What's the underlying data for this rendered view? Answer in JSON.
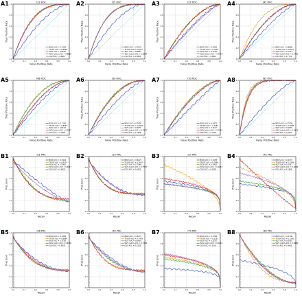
{
  "colors": {
    "BOW": "#1f3fbf",
    "TF-IDF": "#ff9800",
    "W2V": "#2ca02c",
    "W2V_batch": "#e31a1c",
    "D2V": "#9467bd",
    "baseline": "#17becf"
  },
  "chart_data": [
    {
      "panel": "A1",
      "type": "line",
      "kind": "roc",
      "title": "I21 ROC",
      "xlabel": "False Positive Rate",
      "ylabel": "True Positive Rate",
      "xlim": [
        0,
        1
      ],
      "ylim": [
        0,
        1
      ],
      "series": [
        {
          "name": "BOW AUC = 0.7595",
          "key": "BOW",
          "k": 1.65
        },
        {
          "name": "TF-IDF AUC = 0.8648",
          "key": "TF-IDF",
          "k": 3.0
        },
        {
          "name": "W2V AUC = 0.8610",
          "key": "W2V",
          "k": 2.95
        },
        {
          "name": "W2V_batch AUC = 0.8686",
          "key": "W2V_batch",
          "k": 3.1
        },
        {
          "name": "D2V AUC = 0.8613",
          "key": "D2V",
          "k": 2.95
        }
      ]
    },
    {
      "panel": "A2",
      "type": "line",
      "kind": "roc",
      "title": "I25 ROC",
      "xlabel": "False Positive Rate",
      "ylabel": "True Positive Rate",
      "xlim": [
        0,
        1
      ],
      "ylim": [
        0,
        1
      ],
      "series": [
        {
          "name": "BOW AUC = 0.7837",
          "key": "BOW",
          "k": 1.8
        },
        {
          "name": "TF-IDF AUC = 0.8927",
          "key": "TF-IDF",
          "k": 3.5
        },
        {
          "name": "W2V AUC = 0.8895",
          "key": "W2V",
          "k": 3.45
        },
        {
          "name": "W2V_batch AUC = 0.8894",
          "key": "W2V_batch",
          "k": 3.45
        },
        {
          "name": "D2V AUC = 0.8893",
          "key": "D2V",
          "k": 3.45
        }
      ]
    },
    {
      "panel": "A3",
      "type": "line",
      "kind": "roc",
      "title": "I27 ROC",
      "xlabel": "False Positive Rate",
      "ylabel": "True Positive Rate",
      "xlim": [
        0,
        1
      ],
      "ylim": [
        0,
        1
      ],
      "series": [
        {
          "name": "BOW AUC = 0.6995",
          "key": "BOW",
          "k": 1.35
        },
        {
          "name": "TF-IDF AUC = 0.7802",
          "key": "TF-IDF",
          "k": 1.85
        },
        {
          "name": "W2V AUC = 0.7748",
          "key": "W2V",
          "k": 1.8
        },
        {
          "name": "W2V_batch AUC = 0.7723",
          "key": "W2V_batch",
          "k": 1.8
        },
        {
          "name": "D2V AUC = 0.6813",
          "key": "D2V",
          "k": 1.25
        }
      ]
    },
    {
      "panel": "A4",
      "type": "line",
      "kind": "roc",
      "title": "I42 ROC",
      "xlabel": "False Positive Rate",
      "ylabel": "True Positive Rate",
      "xlim": [
        0,
        1
      ],
      "ylim": [
        0,
        1
      ],
      "series": [
        {
          "name": "BOW AUC = 0.6880",
          "key": "BOW",
          "k": 1.3
        },
        {
          "name": "TF-IDF AUC = 0.8507",
          "key": "TF-IDF",
          "k": 2.75
        },
        {
          "name": "W2V AUC = 0.7731",
          "key": "W2V",
          "k": 1.8
        },
        {
          "name": "W2V_batch AUC = 0.7791",
          "key": "W2V_batch",
          "k": 1.85
        },
        {
          "name": "D2V AUC = 0.7731",
          "key": "D2V",
          "k": 1.8
        }
      ]
    },
    {
      "panel": "A5",
      "type": "line",
      "kind": "roc",
      "title": "I48 ROC",
      "xlabel": "False Positive Rate",
      "ylabel": "True Positive Rate",
      "xlim": [
        0,
        1
      ],
      "ylim": [
        0,
        1
      ],
      "series": [
        {
          "name": "BOW AUC = 0.7106",
          "key": "BOW",
          "k": 1.4
        },
        {
          "name": "TF-IDF AUC = 0.8063",
          "key": "TF-IDF",
          "k": 2.2
        },
        {
          "name": "W2V AUC = 0.8103",
          "key": "W2V",
          "k": 2.25
        },
        {
          "name": "W2V_batch AUC = 0.7673",
          "key": "W2V_batch",
          "k": 1.75
        },
        {
          "name": "D2V AUC = 0.7616",
          "key": "D2V",
          "k": 1.7
        }
      ]
    },
    {
      "panel": "A6",
      "type": "line",
      "kind": "roc",
      "title": "I50 ROC",
      "xlabel": "False Positive Rate",
      "ylabel": "True Positive Rate",
      "xlim": [
        0,
        1
      ],
      "ylim": [
        0,
        1
      ],
      "series": [
        {
          "name": "BOW AUC = 0.7056",
          "key": "BOW",
          "k": 1.4
        },
        {
          "name": "TF-IDF AUC = 0.8084",
          "key": "TF-IDF",
          "k": 2.25
        },
        {
          "name": "W2V AUC = 0.8075",
          "key": "W2V",
          "k": 2.2
        },
        {
          "name": "W2V_batch AUC = 0.7977",
          "key": "W2V_batch",
          "k": 2.1
        },
        {
          "name": "D2V AUC = 0.7988",
          "key": "D2V",
          "k": 2.1
        }
      ]
    },
    {
      "panel": "A7",
      "type": "line",
      "kind": "roc",
      "title": "I70 ROC",
      "xlabel": "False Positive Rate",
      "ylabel": "True Positive Rate",
      "xlim": [
        0,
        1
      ],
      "ylim": [
        0,
        1
      ],
      "series": [
        {
          "name": "BOW AUC = 0.6475",
          "key": "BOW",
          "k": 1.1
        },
        {
          "name": "TF-IDF AUC = 0.7682",
          "key": "TF-IDF",
          "k": 1.75
        },
        {
          "name": "W2V AUC = 0.7612",
          "key": "W2V",
          "k": 1.7
        },
        {
          "name": "W2V_batch AUC = 0.7453",
          "key": "W2V_batch",
          "k": 1.6
        },
        {
          "name": "D2V AUC = 0.7453",
          "key": "D2V",
          "k": 1.6
        }
      ]
    },
    {
      "panel": "A8",
      "type": "line",
      "kind": "roc",
      "title": "I85 ROC",
      "xlabel": "False Positive Rate",
      "ylabel": "True Positive Rate",
      "xlim": [
        0,
        1
      ],
      "ylim": [
        0,
        1
      ],
      "series": [
        {
          "name": "BOW AUC = 0.7006",
          "key": "BOW",
          "k": 1.35
        },
        {
          "name": "TF-IDF AUC = 0.9668",
          "key": "TF-IDF",
          "k": 8.5
        },
        {
          "name": "W2V AUC = 0.9545",
          "key": "W2V",
          "k": 7.0
        },
        {
          "name": "W2V_batch AUC = 0.9474",
          "key": "W2V_batch",
          "k": 6.5
        },
        {
          "name": "D2V AUC = 0.9591",
          "key": "D2V",
          "k": 7.5
        }
      ]
    },
    {
      "panel": "B1",
      "type": "line",
      "kind": "prc",
      "title": "I21 PRC",
      "xlabel": "Recall",
      "ylabel": "Precision",
      "xlim": [
        0,
        1
      ],
      "ylim": [
        0,
        1
      ],
      "series": [
        {
          "name": "BOW AUC = 0.3942",
          "key": "BOW",
          "hi": 0.93,
          "lo": 0.17,
          "p": 1.2
        },
        {
          "name": "TF-IDF AUC = 0.6329",
          "key": "TF-IDF",
          "hi": 0.96,
          "lo": 0.22,
          "p": 2.8
        },
        {
          "name": "W2V AUC = 0.5981",
          "key": "W2V",
          "hi": 0.95,
          "lo": 0.2,
          "p": 2.5
        },
        {
          "name": "W2V_batch AUC = 0.6417",
          "key": "W2V_batch",
          "hi": 0.97,
          "lo": 0.23,
          "p": 3.0
        },
        {
          "name": "D2V AUC = 0.4633",
          "key": "D2V",
          "hi": 0.9,
          "lo": 0.18,
          "p": 1.5
        }
      ]
    },
    {
      "panel": "B2",
      "type": "line",
      "kind": "prc",
      "title": "I25 PRC",
      "xlabel": "Recall",
      "ylabel": "Precision",
      "xlim": [
        0,
        1
      ],
      "ylim": [
        0,
        1
      ],
      "series": [
        {
          "name": "BOW AUC = 0.6427",
          "key": "BOW",
          "hi": 0.93,
          "lo": 0.3,
          "p": 2.2
        },
        {
          "name": "TF-IDF AUC = 0.7642",
          "key": "TF-IDF",
          "hi": 0.97,
          "lo": 0.33,
          "p": 4.0
        },
        {
          "name": "W2V AUC = 0.7546",
          "key": "W2V",
          "hi": 0.96,
          "lo": 0.32,
          "p": 3.8
        },
        {
          "name": "W2V_batch AUC = 0.7557",
          "key": "W2V_batch",
          "hi": 0.96,
          "lo": 0.32,
          "p": 3.8
        },
        {
          "name": "D2V AUC = 0.6476",
          "key": "D2V",
          "hi": 0.92,
          "lo": 0.3,
          "p": 2.3
        }
      ]
    },
    {
      "panel": "B3",
      "type": "line",
      "kind": "prc",
      "title": "I27 PRC",
      "xlabel": "Recall",
      "ylabel": "Precision",
      "xlim": [
        0,
        1
      ],
      "ylim": [
        0,
        1
      ],
      "series": [
        {
          "name": "BOW AUC = 0.1258",
          "key": "BOW",
          "hi": 0.55,
          "lo": 0.03,
          "p": 0.25
        },
        {
          "name": "TF-IDF AUC = 0.2666",
          "key": "TF-IDF",
          "hi": 0.85,
          "lo": 0.05,
          "p": 0.55
        },
        {
          "name": "W2V AUC = 0.1063",
          "key": "W2V",
          "hi": 0.5,
          "lo": 0.03,
          "p": 0.22
        },
        {
          "name": "W2V_batch AUC = 0.1461",
          "key": "W2V_batch",
          "hi": 0.6,
          "lo": 0.03,
          "p": 0.28
        },
        {
          "name": "D2V AUC = 0.1081",
          "key": "D2V",
          "hi": 0.5,
          "lo": 0.03,
          "p": 0.22
        }
      ]
    },
    {
      "panel": "B4",
      "type": "line",
      "kind": "prc",
      "title": "I42 PRC",
      "xlabel": "Recall",
      "ylabel": "Precision",
      "xlim": [
        0,
        1
      ],
      "ylim": [
        0,
        1
      ],
      "series": [
        {
          "name": "BOW AUC = 0.1072",
          "key": "BOW",
          "hi": 0.5,
          "lo": 0.03,
          "p": 0.22
        },
        {
          "name": "TF-IDF AUC = 0.2399",
          "key": "TF-IDF",
          "hi": 0.8,
          "lo": 0.05,
          "p": 0.5
        },
        {
          "name": "W2V AUC = 0.1191",
          "key": "W2V",
          "hi": 0.55,
          "lo": 0.03,
          "p": 0.24
        },
        {
          "name": "W2V_batch AUC = 0.4069",
          "key": "W2V_batch",
          "hi": 0.95,
          "lo": 0.06,
          "p": 1.1
        },
        {
          "name": "D2V AUC = 0.1899",
          "key": "D2V",
          "hi": 0.7,
          "lo": 0.04,
          "p": 0.38
        }
      ]
    },
    {
      "panel": "B5",
      "type": "line",
      "kind": "prc",
      "title": "I48 PRC",
      "xlabel": "Recall",
      "ylabel": "Precision",
      "xlim": [
        0,
        1
      ],
      "ylim": [
        0,
        1
      ],
      "series": [
        {
          "name": "BOW AUC = 0.6209",
          "key": "BOW",
          "hi": 0.9,
          "lo": 0.3,
          "p": 2.0
        },
        {
          "name": "TF-IDF AUC = 0.6884",
          "key": "TF-IDF",
          "hi": 0.93,
          "lo": 0.32,
          "p": 2.8
        },
        {
          "name": "W2V AUC = 0.7158",
          "key": "W2V",
          "hi": 0.94,
          "lo": 0.33,
          "p": 3.2
        },
        {
          "name": "W2V_batch AUC = 0.6765",
          "key": "W2V_batch",
          "hi": 0.93,
          "lo": 0.31,
          "p": 2.7
        },
        {
          "name": "D2V AUC = 0.6378",
          "key": "D2V",
          "hi": 0.91,
          "lo": 0.3,
          "p": 2.2
        }
      ]
    },
    {
      "panel": "B6",
      "type": "line",
      "kind": "prc",
      "title": "I50 PRC",
      "xlabel": "Recall",
      "ylabel": "Precision",
      "xlim": [
        0,
        1
      ],
      "ylim": [
        0,
        1
      ],
      "series": [
        {
          "name": "BOW AUC = 0.5671",
          "key": "BOW",
          "hi": 0.9,
          "lo": 0.28,
          "p": 1.7
        },
        {
          "name": "TF-IDF AUC = 0.7478",
          "key": "TF-IDF",
          "hi": 0.95,
          "lo": 0.32,
          "p": 3.6
        },
        {
          "name": "W2V AUC = 0.6400",
          "key": "W2V",
          "hi": 0.92,
          "lo": 0.3,
          "p": 2.3
        },
        {
          "name": "W2V_batch AUC = 0.7399",
          "key": "W2V_batch",
          "hi": 0.95,
          "lo": 0.32,
          "p": 3.5
        },
        {
          "name": "D2V AUC = 0.6126",
          "key": "D2V",
          "hi": 0.91,
          "lo": 0.29,
          "p": 2.0
        }
      ]
    },
    {
      "panel": "B7",
      "type": "line",
      "kind": "prc",
      "title": "I70 PRC",
      "xlabel": "Recall",
      "ylabel": "Precision",
      "xlim": [
        0,
        1
      ],
      "ylim": [
        0,
        1
      ],
      "series": [
        {
          "name": "BOW AUC = 0.0796",
          "key": "BOW",
          "hi": 0.35,
          "lo": 0.02,
          "p": 0.17
        },
        {
          "name": "TF-IDF AUC = 0.1353",
          "key": "TF-IDF",
          "hi": 0.55,
          "lo": 0.03,
          "p": 0.26
        },
        {
          "name": "W2V AUC = 0.1251",
          "key": "W2V",
          "hi": 0.52,
          "lo": 0.03,
          "p": 0.25
        },
        {
          "name": "W2V_batch AUC = 0.1452",
          "key": "W2V_batch",
          "hi": 0.6,
          "lo": 0.03,
          "p": 0.28
        },
        {
          "name": "D2V AUC = 0.1501",
          "key": "D2V",
          "hi": 0.62,
          "lo": 0.03,
          "p": 0.3
        }
      ]
    },
    {
      "panel": "B8",
      "type": "line",
      "kind": "prc",
      "title": "I85 PRC",
      "xlabel": "Recall",
      "ylabel": "Precision",
      "xlim": [
        0,
        1
      ],
      "ylim": [
        0,
        1
      ],
      "series": [
        {
          "name": "BOW AUC = 0.1706",
          "key": "BOW",
          "hi": 0.5,
          "lo": 0.04,
          "p": 0.4
        },
        {
          "name": "TF-IDF AUC = 0.7290",
          "key": "TF-IDF",
          "hi": 0.98,
          "lo": 0.1,
          "p": 2.6
        },
        {
          "name": "W2V AUC = 0.6195",
          "key": "W2V",
          "hi": 0.95,
          "lo": 0.08,
          "p": 1.8
        },
        {
          "name": "W2V_batch AUC = 0.6486",
          "key": "W2V_batch",
          "hi": 0.96,
          "lo": 0.09,
          "p": 2.0
        },
        {
          "name": "D2V AUC = 0.6643",
          "key": "D2V",
          "hi": 0.96,
          "lo": 0.09,
          "p": 2.1
        }
      ]
    }
  ]
}
